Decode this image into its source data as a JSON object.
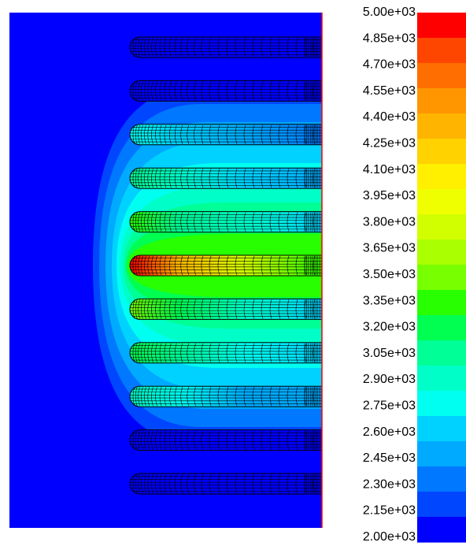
{
  "chart_data": {
    "type": "heatmap",
    "title": "",
    "xlabel": "",
    "ylabel": "",
    "colorbar": {
      "min": 2000,
      "max": 5000,
      "step": 150,
      "labels": [
        "5.00e+03",
        "4.85e+03",
        "4.70e+03",
        "4.55e+03",
        "4.40e+03",
        "4.25e+03",
        "4.10e+03",
        "3.95e+03",
        "3.80e+03",
        "3.65e+03",
        "3.50e+03",
        "3.35e+03",
        "3.20e+03",
        "3.05e+03",
        "2.90e+03",
        "2.75e+03",
        "2.60e+03",
        "2.45e+03",
        "2.30e+03",
        "2.15e+03",
        "2.00e+03"
      ],
      "colors": [
        "#ff0000",
        "#ff4600",
        "#ff6e00",
        "#ff9600",
        "#ffb400",
        "#ffd200",
        "#fff000",
        "#f0ff00",
        "#d2ff00",
        "#aaff00",
        "#78ff00",
        "#28ff00",
        "#00ff50",
        "#00ff96",
        "#00ffc8",
        "#00fff0",
        "#00d2ff",
        "#00aaff",
        "#0078ff",
        "#0046ff",
        "#0000ff"
      ]
    },
    "tubes": [
      {
        "row": 1,
        "peak_value": 2000
      },
      {
        "row": 2,
        "peak_value": 2000
      },
      {
        "row": 3,
        "peak_value": 2700
      },
      {
        "row": 4,
        "peak_value": 3050
      },
      {
        "row": 5,
        "peak_value": 3400
      },
      {
        "row": 6,
        "peak_value": 4950
      },
      {
        "row": 7,
        "peak_value": 3500
      },
      {
        "row": 8,
        "peak_value": 3250
      },
      {
        "row": 9,
        "peak_value": 2850
      },
      {
        "row": 10,
        "peak_value": 2000
      },
      {
        "row": 11,
        "peak_value": 2000
      }
    ],
    "background_value": 2000,
    "colors": {
      "background": "#0000ff",
      "mesh_line": "#000000",
      "boundary_line": "#ff0000"
    }
  }
}
